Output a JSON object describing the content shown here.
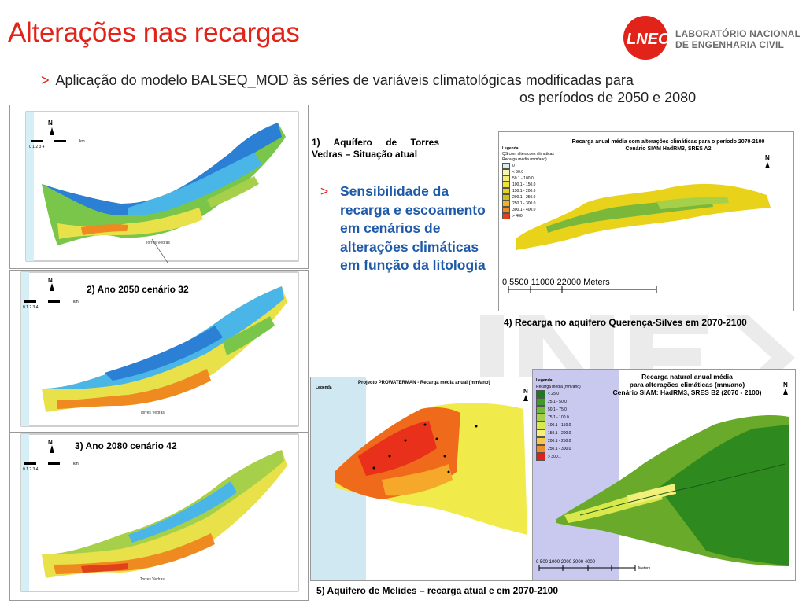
{
  "header": {
    "title": "Alterações nas recargas",
    "logo_name_line1": "LABORATÓRIO NACIONAL",
    "logo_name_line2": "DE ENGENHARIA CIVIL",
    "logo_mark": "LNEC"
  },
  "intro": {
    "marker": ">",
    "line1": "Aplicação do modelo BALSEQ_MOD às séries de variáveis climatológicas modificadas para",
    "line2": "os períodos de 2050 e 2080"
  },
  "sensitivity": {
    "marker": ">",
    "text": "Sensibilidade da recarga e escoamento em cenários de alterações climáticas  em função da litologia"
  },
  "captions": {
    "c1": "1)  Aquífero  de  Torres Vedras – Situação atual",
    "c2": "2) Ano 2050 cenário 32",
    "c3": "3) Ano 2080 cenário 42",
    "c4": "4) Recarga no aquífero Querença-Silves em 2070-2100",
    "c5": "5) Aquífero de Melides – recarga atual e em 2070-2100"
  },
  "map4": {
    "title_line1": "Recarga anual média com alterações climáticas para o período 2070-2100",
    "title_line2": "Cenário SIAM HadRM3, SRES A2",
    "legend_title": "Legenda",
    "legend_sub": "QS com alteracoes climaticas",
    "legend_sub2": "Recarga média (mm/ano)",
    "legend_items": [
      "0",
      "< 50.0",
      "50.1 - 100.0",
      "100.1 - 150.0",
      "150.1 - 200.0",
      "200.1 - 250.0",
      "250.1 - 300.0",
      "300.1 - 400.0",
      "> 400"
    ],
    "legend_colors": [
      "#d9ecf2",
      "#f7f4b0",
      "#f4ec7a",
      "#efe23a",
      "#e9d21a",
      "#c9c31a",
      "#f2b12a",
      "#ef8a20",
      "#e0401a"
    ],
    "scale": "0     5500   11000            22000 Meters",
    "north": "N"
  },
  "map5a": {
    "title": "Projecto PROWATERMAN - Recarga média anual (mm/ano)",
    "legend_title": "Legenda",
    "north": "N"
  },
  "map5b": {
    "title_line1": "Recarga natural anual média",
    "title_line2": "para alterações climáticas (mm/ano)",
    "title_line3": "Cenário SIAM: HadRM3, SRES B2 (2070 - 2100)",
    "legend_title": "Legenda",
    "legend_sub": "Recarga média (mm/ano)",
    "legend_items": [
      "< 25.0",
      "25.1 - 50.0",
      "50.1 - 75.0",
      "75.1 - 100.0",
      "100.1 - 150.0",
      "150.1 - 200.0",
      "200.1 - 250.0",
      "250.1 - 300.0",
      "> 300.1"
    ],
    "legend_colors": [
      "#1d7a1d",
      "#3f9a2a",
      "#73b83a",
      "#a6d04a",
      "#d9e84a",
      "#f2f07a",
      "#f6c84a",
      "#f08a2a",
      "#e0201a"
    ],
    "scale": "0  500 1000      2000      3000      4000",
    "scale_unit": "Meters",
    "north": "N"
  },
  "small_maps": {
    "scale_unit": "km",
    "scale_ticks": "0    1    2    3    4",
    "place": "Torres Vedras",
    "north": "N"
  }
}
